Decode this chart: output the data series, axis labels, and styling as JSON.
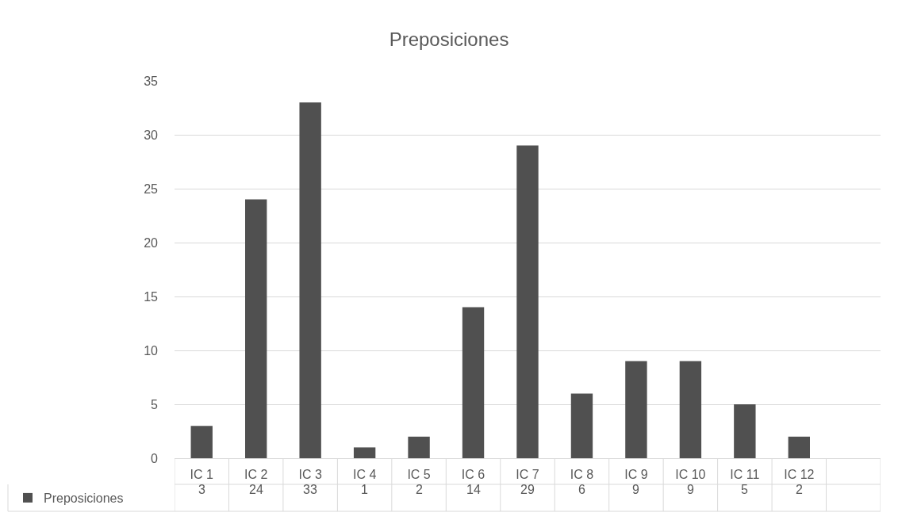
{
  "chart_data": {
    "type": "bar",
    "title": "Preposiciones",
    "categories": [
      "IC 1",
      "IC 2",
      "IC 3",
      "IC 4",
      "IC 5",
      "IC 6",
      "IC 7",
      "IC 8",
      "IC 9",
      "IC 10",
      "IC 11",
      "IC 12",
      null
    ],
    "series": [
      {
        "name": "Preposiciones",
        "color": "#505050",
        "values": [
          3,
          24,
          33,
          1,
          2,
          14,
          29,
          6,
          9,
          9,
          5,
          2,
          null
        ]
      }
    ],
    "ylim": [
      0,
      35
    ],
    "yticks": [
      0,
      5,
      10,
      15,
      20,
      25,
      30,
      35
    ],
    "grid": "y",
    "legend": "bottom left",
    "data_labels": true
  }
}
